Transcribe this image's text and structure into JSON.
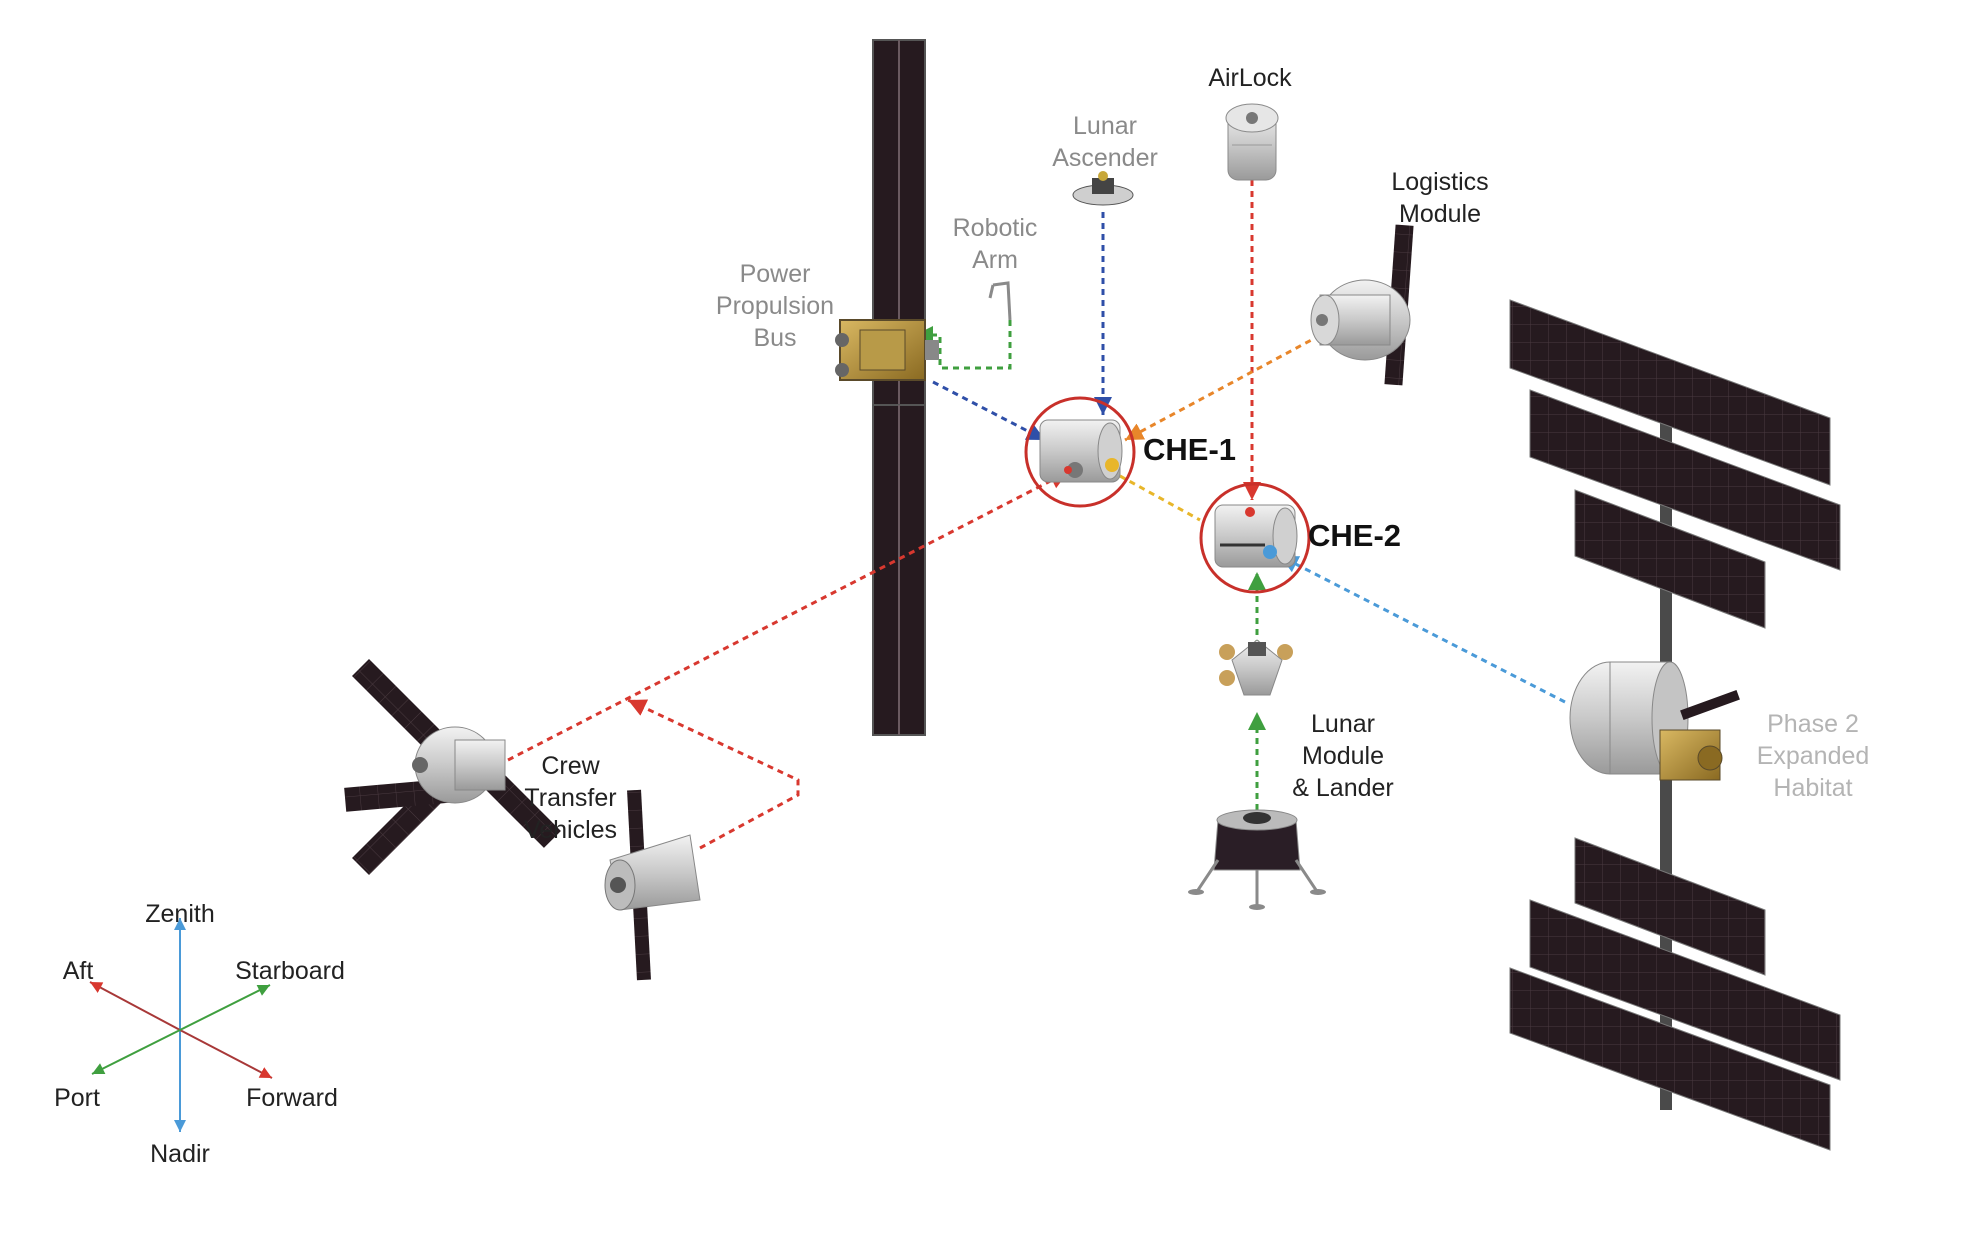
{
  "modules": {
    "airlock": [
      "AirLock"
    ],
    "lunar_ascender": [
      "Lunar",
      "Ascender"
    ],
    "logistics_module": [
      "Logistics",
      "Module"
    ],
    "robotic_arm": [
      "Robotic",
      "Arm"
    ],
    "power_propulsion_bus": [
      "Power",
      "Propulsion",
      "Bus"
    ],
    "che1": [
      "CHE-1"
    ],
    "che2": [
      "CHE-2"
    ],
    "lunar_module_lander": [
      "Lunar",
      "Module",
      "& Lander"
    ],
    "crew_transfer_vehicles": [
      "Crew",
      "Transfer",
      "Vehicles"
    ],
    "phase2_habitat": [
      "Phase 2",
      "Expanded",
      "Habitat"
    ]
  },
  "axes": {
    "zenith": "Zenith",
    "nadir": "Nadir",
    "aft": "Aft",
    "forward": "Forward",
    "starboard": "Starboard",
    "port": "Port"
  },
  "colors": {
    "red": "#d8382f",
    "blue": "#2f4fa8",
    "light_blue": "#4a9ad8",
    "green": "#3f9f3f",
    "orange": "#e8862a",
    "yellow": "#e8b62a",
    "panel": "#261a1f"
  }
}
